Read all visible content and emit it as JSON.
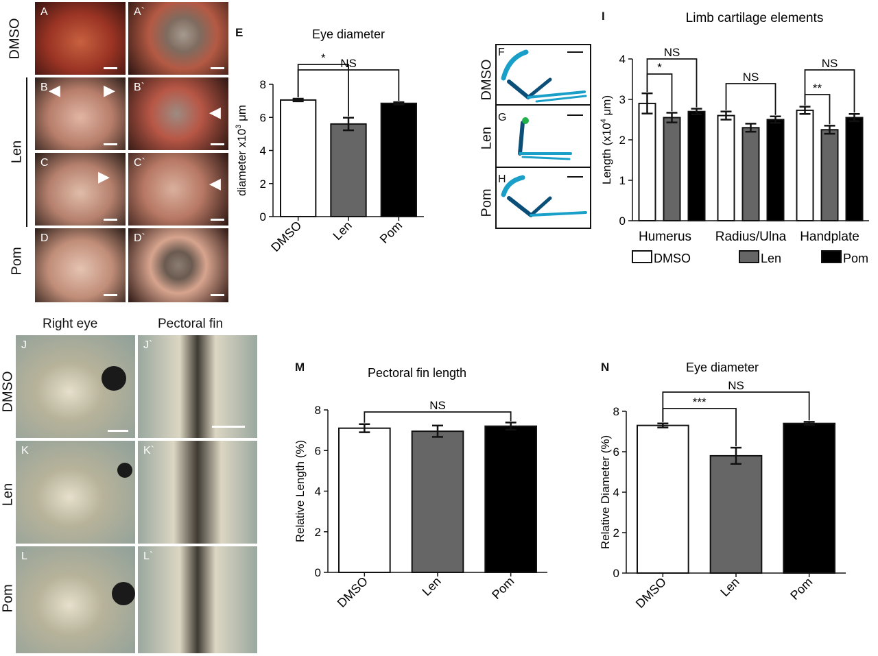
{
  "photos_top": {
    "row_labels": [
      "DMSO",
      "Len",
      "Pom"
    ],
    "letters": [
      "A",
      "A`",
      "B",
      "B`",
      "C",
      "C`",
      "D",
      "D`"
    ]
  },
  "panel_F_H": {
    "letters": [
      "F",
      "G",
      "H"
    ],
    "row_labels": [
      "DMSO",
      "Len",
      "Pom"
    ]
  },
  "photos_bottom": {
    "col_titles": [
      "Right eye",
      "Pectoral fin"
    ],
    "row_labels": [
      "DMSO",
      "Len",
      "Pom"
    ],
    "letters": [
      "J",
      "J`",
      "K",
      "K`",
      "L",
      "L`"
    ]
  },
  "colors": {
    "dmso": "#ffffff",
    "len": "#666666",
    "pom": "#000000"
  },
  "chart_data": [
    {
      "id": "E",
      "letter": "E",
      "type": "bar",
      "title": "Eye diameter",
      "ylabel": "diameter x10",
      "ylabel_sup": "3",
      "ylabel_unit": " μm",
      "categories": [
        "DMSO",
        "Len",
        "Pom"
      ],
      "values": [
        7.05,
        5.6,
        6.85
      ],
      "errors": [
        0.08,
        0.38,
        0.07
      ],
      "ylim": [
        0,
        8
      ],
      "yticks": [
        "0",
        "2",
        "4",
        "6",
        "8"
      ],
      "annotations": [
        {
          "from": 0,
          "to": 1,
          "label": "*"
        },
        {
          "from": 0,
          "to": 2,
          "label": "NS"
        }
      ]
    },
    {
      "id": "I",
      "letter": "I",
      "type": "bar",
      "title": "Limb cartilage elements",
      "ylabel": "Length (x10",
      "ylabel_sup": "4",
      "ylabel_unit": " μm)",
      "categories": [
        "Humerus",
        "Radius/Ulna",
        "Handplate"
      ],
      "series": [
        {
          "name": "DMSO",
          "values": [
            2.9,
            2.6,
            2.73
          ],
          "errors": [
            0.25,
            0.1,
            0.09
          ]
        },
        {
          "name": "Len",
          "values": [
            2.55,
            2.3,
            2.25
          ],
          "errors": [
            0.12,
            0.1,
            0.1
          ]
        },
        {
          "name": "Pom",
          "values": [
            2.7,
            2.5,
            2.55
          ],
          "errors": [
            0.07,
            0.08,
            0.09
          ]
        }
      ],
      "ylim": [
        0,
        4
      ],
      "yticks": [
        "0",
        "1",
        "2",
        "3",
        "4"
      ],
      "annotations": [
        {
          "group": 0,
          "from": 0,
          "to": 1,
          "label": "*"
        },
        {
          "group": 0,
          "from": 0,
          "to": 2,
          "label": "NS"
        },
        {
          "group": 1,
          "from": 0,
          "to": 2,
          "label": "NS"
        },
        {
          "group": 2,
          "from": 0,
          "to": 1,
          "label": "**"
        },
        {
          "group": 2,
          "from": 0,
          "to": 2,
          "label": "NS"
        }
      ],
      "legend": [
        "DMSO",
        "Len",
        "Pom"
      ]
    },
    {
      "id": "M",
      "letter": "M",
      "type": "bar",
      "title": "Pectoral fin length",
      "ylabel": "Relative Length (%)",
      "categories": [
        "DMSO",
        "Len",
        "Pom"
      ],
      "values": [
        7.1,
        6.95,
        7.2
      ],
      "errors": [
        0.2,
        0.28,
        0.18
      ],
      "ylim": [
        0,
        8
      ],
      "yticks": [
        "0",
        "2",
        "4",
        "6",
        "8"
      ],
      "annotations": [
        {
          "from": 0,
          "to": 2,
          "label": "NS"
        }
      ]
    },
    {
      "id": "N",
      "letter": "N",
      "type": "bar",
      "title": "Eye diameter",
      "ylabel": "Relative Diameter (%)",
      "categories": [
        "DMSO",
        "Len",
        "Pom"
      ],
      "values": [
        7.3,
        5.8,
        7.4
      ],
      "errors": [
        0.1,
        0.4,
        0.08
      ],
      "ylim": [
        0,
        8
      ],
      "yticks": [
        "0",
        "2",
        "4",
        "6",
        "8"
      ],
      "annotations": [
        {
          "from": 0,
          "to": 1,
          "label": "***"
        },
        {
          "from": 0,
          "to": 2,
          "label": "NS"
        }
      ]
    }
  ]
}
